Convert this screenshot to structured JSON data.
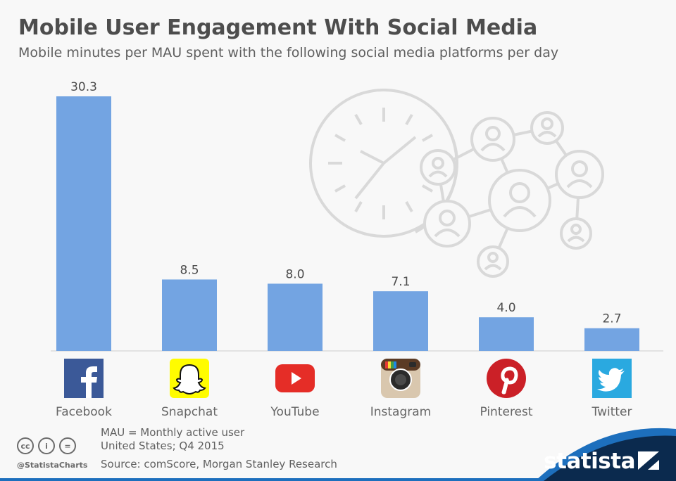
{
  "header": {
    "title": "Mobile User Engagement With Social Media",
    "subtitle": "Mobile minutes per MAU spent with the following social media platforms per day"
  },
  "chart_data": {
    "type": "bar",
    "title": "Mobile User Engagement With Social Media",
    "subtitle": "Mobile minutes per MAU spent with the following social media platforms per day",
    "categories": [
      "Facebook",
      "Snapchat",
      "YouTube",
      "Instagram",
      "Pinterest",
      "Twitter"
    ],
    "values": [
      30.3,
      8.5,
      8.0,
      7.1,
      4.0,
      2.7
    ],
    "value_labels": [
      "30.3",
      "8.5",
      "8.0",
      "7.1",
      "4.0",
      "2.7"
    ],
    "ylim": [
      0,
      30.3
    ],
    "xlabel": "",
    "ylabel": "",
    "grid": false,
    "bar_color": "#73a4e2",
    "icons": [
      "facebook-icon",
      "snapchat-icon",
      "youtube-icon",
      "instagram-icon",
      "pinterest-icon",
      "twitter-icon"
    ]
  },
  "footer": {
    "note_line1": "MAU = Monthly active user",
    "note_line2": "United States; Q4 2015",
    "source": "Source: comScore, Morgan Stanley Research",
    "handle": "@StatistaCharts",
    "cc_symbols": [
      "cc",
      "i",
      "="
    ],
    "brand": "statista"
  },
  "colors": {
    "background": "#f8f8f8",
    "bar": "#73a4e2",
    "brand_dark": "#0b2a4e",
    "brand_light": "#1d6fbd",
    "illustration": "#d9d9d9"
  }
}
